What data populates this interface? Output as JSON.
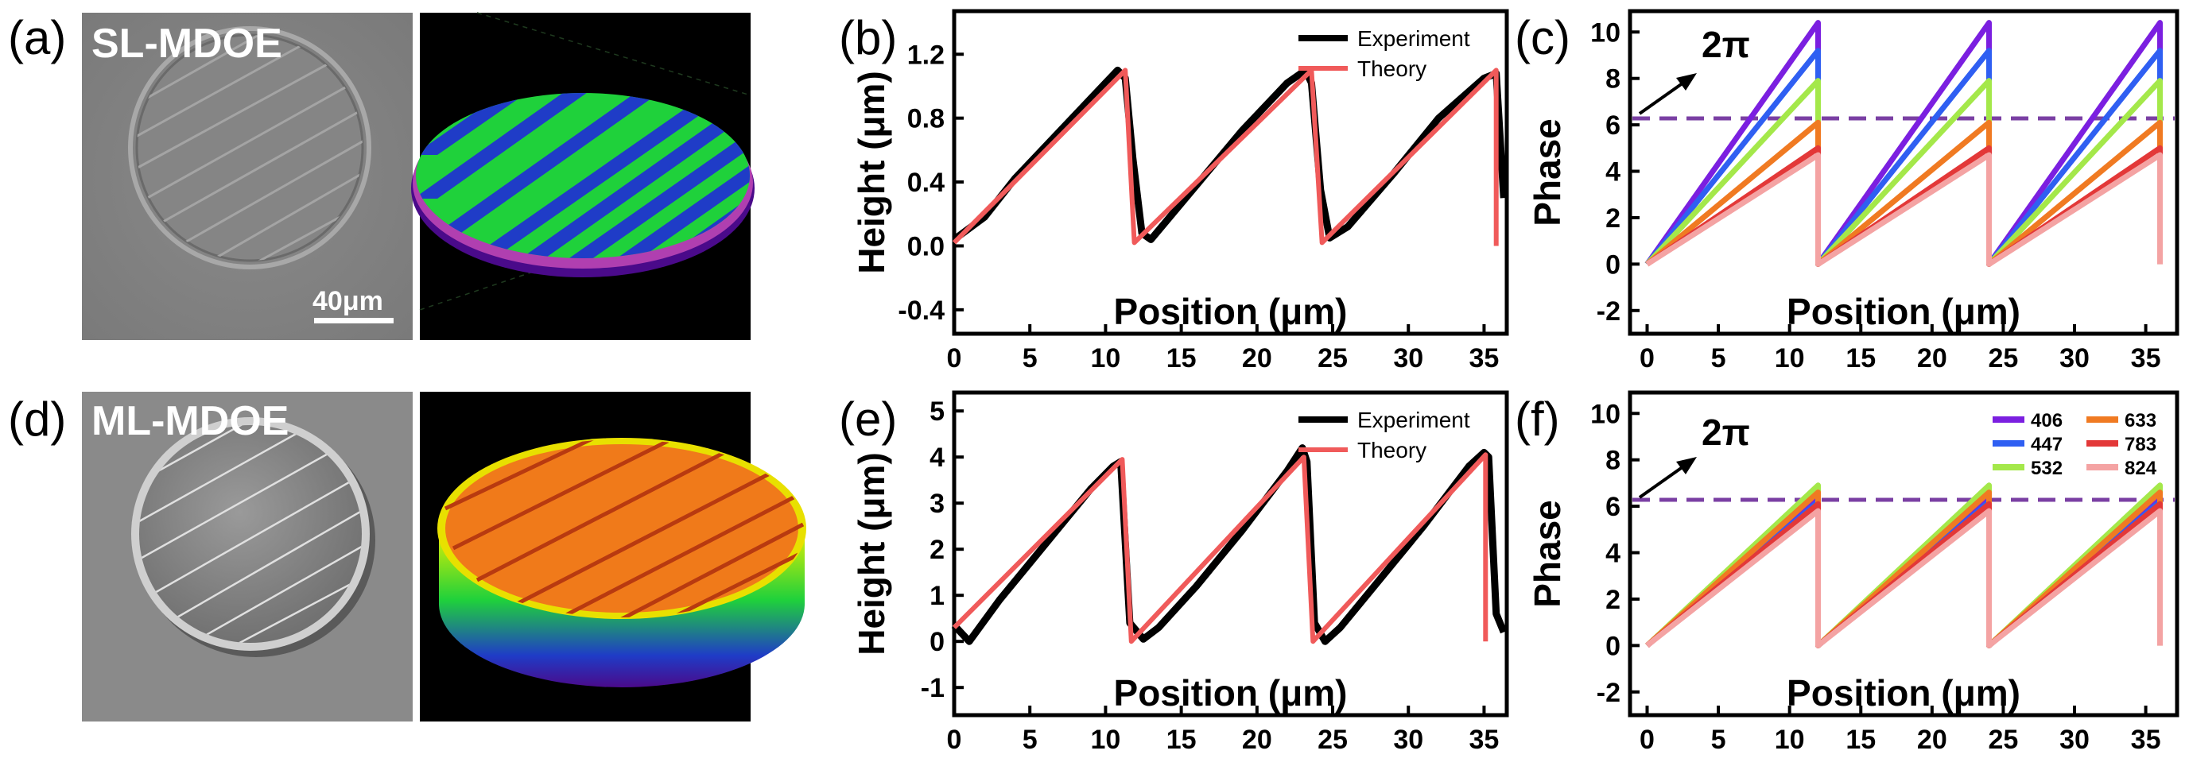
{
  "panels": {
    "a": {
      "tag": "(a)",
      "label": "SL-MDOE",
      "scalebar": "40μm"
    },
    "d": {
      "tag": "(d)",
      "label": "ML-MDOE"
    },
    "b": {
      "tag": "(b)"
    },
    "c": {
      "tag": "(c)",
      "annotation": "2π"
    },
    "e": {
      "tag": "(e)"
    },
    "f": {
      "tag": "(f)",
      "annotation": "2π"
    }
  },
  "colors": {
    "experiment": "#000000",
    "theory": "#f05a5a",
    "dashed": "#7a3fa3",
    "wavelengths": [
      "#7b1fe0",
      "#2f5ff2",
      "#a4e84a",
      "#f07a22",
      "#e33838",
      "#f4a3a3"
    ],
    "stripes_green": "#1fd13b",
    "stripes_blue": "#1f3cc7",
    "ml_orange": "#f07a1a"
  },
  "chart_data": [
    {
      "id": "b",
      "type": "line",
      "xlabel": "Position (μm)",
      "ylabel": "Height (μm)",
      "xlim": [
        0,
        36.5
      ],
      "ylim": [
        -0.55,
        1.47
      ],
      "xticks": [
        0,
        5,
        10,
        15,
        20,
        25,
        30,
        35
      ],
      "yticks": [
        -0.4,
        0.0,
        0.4,
        0.8,
        1.2
      ],
      "ytick_labels": [
        "-0.4",
        "0.0",
        "0.4",
        "0.8",
        "1.2"
      ],
      "legend": "top-right",
      "series": [
        {
          "name": "Experiment",
          "x": [
            0,
            2,
            4,
            6,
            8,
            10,
            10.8,
            11.3,
            11.8,
            12.4,
            13,
            16,
            19,
            22,
            23.2,
            23.6,
            24.2,
            24.8,
            26,
            29,
            32,
            35,
            35.8,
            36.3
          ],
          "y": [
            0.04,
            0.18,
            0.42,
            0.62,
            0.82,
            1.02,
            1.1,
            1.05,
            0.55,
            0.08,
            0.04,
            0.38,
            0.72,
            1.02,
            1.1,
            1.02,
            0.35,
            0.05,
            0.12,
            0.45,
            0.8,
            1.05,
            1.08,
            0.3
          ]
        },
        {
          "name": "Theory",
          "x": [
            0,
            11.3,
            11.3,
            11.9,
            23.6,
            23.6,
            24.3,
            35.8,
            35.8
          ],
          "y": [
            0.02,
            1.1,
            1.1,
            0.02,
            1.1,
            1.1,
            0.02,
            1.1,
            0.0
          ]
        }
      ]
    },
    {
      "id": "c",
      "type": "line",
      "xlabel": "Position (μm)",
      "ylabel": "Phase",
      "xlim": [
        -1.2,
        37.2
      ],
      "ylim": [
        -3.0,
        10.9
      ],
      "xticks": [
        0,
        5,
        10,
        15,
        20,
        25,
        30,
        35
      ],
      "yticks": [
        -2,
        0,
        2,
        4,
        6,
        8,
        10
      ],
      "hline": 6.28,
      "series": [
        {
          "name": "406",
          "x": [
            0,
            12,
            12,
            24,
            24,
            36,
            36
          ],
          "y": [
            0,
            10.4,
            0,
            10.4,
            0,
            10.4,
            0
          ]
        },
        {
          "name": "447",
          "x": [
            0,
            12,
            12,
            24,
            24,
            36,
            36
          ],
          "y": [
            0,
            9.2,
            0,
            9.2,
            0,
            9.2,
            0
          ]
        },
        {
          "name": "532",
          "x": [
            0,
            12,
            12,
            24,
            24,
            36,
            36
          ],
          "y": [
            0,
            7.9,
            0,
            7.9,
            0,
            7.9,
            0
          ]
        },
        {
          "name": "633",
          "x": [
            0,
            12,
            12,
            24,
            24,
            36,
            36
          ],
          "y": [
            0,
            6.1,
            0,
            6.1,
            0,
            6.1,
            0
          ]
        },
        {
          "name": "783",
          "x": [
            0,
            12,
            12,
            24,
            24,
            36,
            36
          ],
          "y": [
            0,
            5.0,
            0,
            5.0,
            0,
            5.0,
            0
          ]
        },
        {
          "name": "824",
          "x": [
            0,
            12,
            12,
            24,
            24,
            36,
            36
          ],
          "y": [
            0,
            4.7,
            0,
            4.7,
            0,
            4.7,
            0
          ]
        }
      ]
    },
    {
      "id": "e",
      "type": "line",
      "xlabel": "Position (μm)",
      "ylabel": "Height (μm)",
      "xlim": [
        0,
        36.5
      ],
      "ylim": [
        -1.6,
        5.4
      ],
      "xticks": [
        0,
        5,
        10,
        15,
        20,
        25,
        30,
        35
      ],
      "yticks": [
        -1,
        0,
        1,
        2,
        3,
        4,
        5
      ],
      "legend": "top-right",
      "series": [
        {
          "name": "Experiment",
          "x": [
            0,
            1,
            3,
            5,
            7,
            9,
            10.5,
            11,
            11.6,
            12.5,
            13.5,
            16,
            19,
            22,
            23,
            23.3,
            23.8,
            24.5,
            25.5,
            28,
            31,
            34,
            35,
            35.3,
            35.8,
            36.3
          ],
          "y": [
            0.35,
            0.0,
            0.9,
            1.7,
            2.5,
            3.3,
            3.8,
            3.9,
            0.4,
            0.05,
            0.3,
            1.2,
            2.4,
            3.7,
            4.2,
            3.9,
            0.4,
            0.0,
            0.3,
            1.3,
            2.5,
            3.8,
            4.1,
            4.0,
            0.6,
            0.2
          ]
        },
        {
          "name": "Theory",
          "x": [
            0,
            11.1,
            11.1,
            11.7,
            23.1,
            23.1,
            23.7,
            35.1,
            35.1
          ],
          "y": [
            0.3,
            3.95,
            3.95,
            0.0,
            4.0,
            4.0,
            0.0,
            4.05,
            0.0
          ]
        }
      ]
    },
    {
      "id": "f",
      "type": "line",
      "xlabel": "Position (μm)",
      "ylabel": "Phase",
      "xlim": [
        -1.2,
        37.2
      ],
      "ylim": [
        -3.0,
        10.9
      ],
      "xticks": [
        0,
        5,
        10,
        15,
        20,
        25,
        30,
        35
      ],
      "yticks": [
        -2,
        0,
        2,
        4,
        6,
        8,
        10
      ],
      "hline": 6.28,
      "legend": "top-right",
      "series": [
        {
          "name": "406",
          "x": [
            0,
            12,
            12,
            24,
            24,
            36,
            36
          ],
          "y": [
            0,
            6.4,
            0,
            6.4,
            0,
            6.4,
            0
          ]
        },
        {
          "name": "447",
          "x": [
            0,
            12,
            12,
            24,
            24,
            36,
            36
          ],
          "y": [
            0,
            6.2,
            0,
            6.2,
            0,
            6.2,
            0
          ]
        },
        {
          "name": "532",
          "x": [
            0,
            12,
            12,
            24,
            24,
            36,
            36
          ],
          "y": [
            0,
            6.9,
            0,
            6.9,
            0,
            6.9,
            0
          ]
        },
        {
          "name": "633",
          "x": [
            0,
            12,
            12,
            24,
            24,
            36,
            36
          ],
          "y": [
            0,
            6.6,
            0,
            6.6,
            0,
            6.6,
            0
          ]
        },
        {
          "name": "783",
          "x": [
            0,
            12,
            12,
            24,
            24,
            36,
            36
          ],
          "y": [
            0,
            6.1,
            0,
            6.1,
            0,
            6.1,
            0
          ]
        },
        {
          "name": "824",
          "x": [
            0,
            12,
            12,
            24,
            24,
            36,
            36
          ],
          "y": [
            0,
            5.8,
            0,
            5.8,
            0,
            5.8,
            0
          ]
        }
      ]
    }
  ]
}
